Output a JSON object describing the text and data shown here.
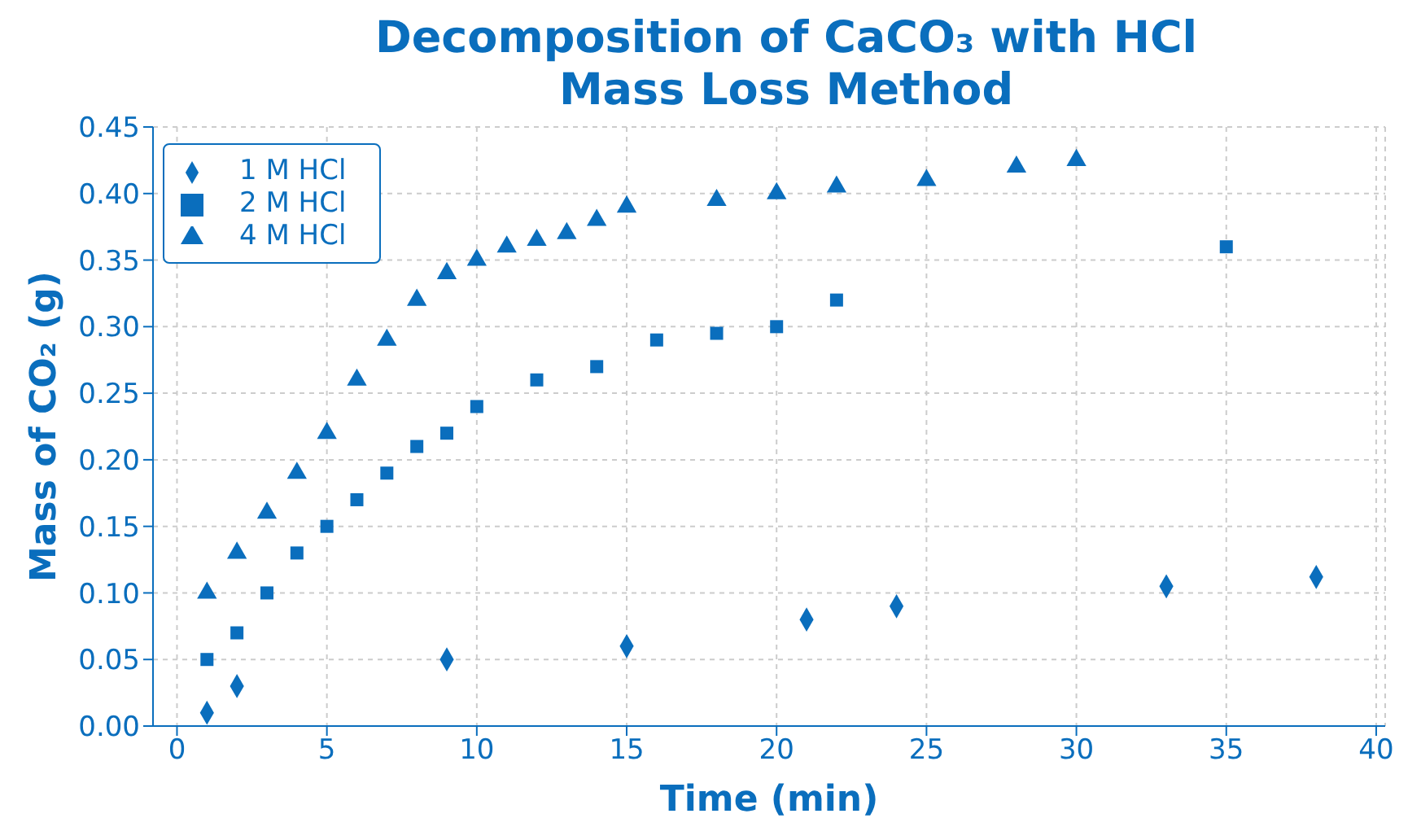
{
  "chart_data": {
    "type": "scatter",
    "title": "Decomposition of CaCO₃ with HCl\nMass Loss Method",
    "xlabel": "Time (min)",
    "ylabel": "Mass of CO₂ (g)",
    "series": [
      {
        "name": "1 M HCl",
        "color": "#0a6ebd",
        "marker": "diamond",
        "x": [
          1,
          2,
          9,
          15,
          21,
          24,
          33,
          38
        ],
        "values": [
          0.01,
          0.03,
          0.05,
          0.06,
          0.08,
          0.09,
          0.105,
          0.112
        ]
      },
      {
        "name": "2 M HCl",
        "color": "#0a6ebd",
        "marker": "square",
        "x": [
          1,
          2,
          3,
          4,
          5,
          6,
          7,
          8,
          9,
          10,
          12,
          14,
          16,
          18,
          20,
          22,
          35
        ],
        "values": [
          0.05,
          0.07,
          0.1,
          0.13,
          0.15,
          0.17,
          0.19,
          0.21,
          0.22,
          0.24,
          0.26,
          0.27,
          0.29,
          0.295,
          0.3,
          0.32,
          0.36
        ]
      },
      {
        "name": "4 M HCl",
        "color": "#0a6ebd",
        "marker": "triangle",
        "x": [
          1,
          2,
          3,
          4,
          5,
          6,
          7,
          8,
          9,
          10,
          11,
          12,
          13,
          14,
          15,
          18,
          20,
          22,
          25,
          28,
          30
        ],
        "values": [
          0.1,
          0.13,
          0.16,
          0.19,
          0.22,
          0.26,
          0.29,
          0.32,
          0.34,
          0.35,
          0.36,
          0.365,
          0.37,
          0.38,
          0.39,
          0.395,
          0.4,
          0.405,
          0.41,
          0.42,
          0.425
        ]
      }
    ],
    "xlim": [
      -0.8,
      40.3
    ],
    "xticks": [
      0,
      5,
      10,
      15,
      20,
      25,
      30,
      35,
      40
    ],
    "ylim": [
      0,
      0.45
    ],
    "yticks": [
      {
        "value": 0,
        "label": "0.00"
      },
      {
        "value": 0.05,
        "label": "0.05"
      },
      {
        "value": 0.1,
        "label": "0.10"
      },
      {
        "value": 0.15,
        "label": "0.15"
      },
      {
        "value": 0.2,
        "label": "0.20"
      },
      {
        "value": 0.25,
        "label": "0.25"
      },
      {
        "value": 0.3,
        "label": "0.30"
      },
      {
        "value": 0.35,
        "label": "0.35"
      },
      {
        "value": 0.4,
        "label": "0.40"
      },
      {
        "value": 0.45,
        "label": "0.45"
      }
    ],
    "grid": true,
    "legend": "top left"
  }
}
